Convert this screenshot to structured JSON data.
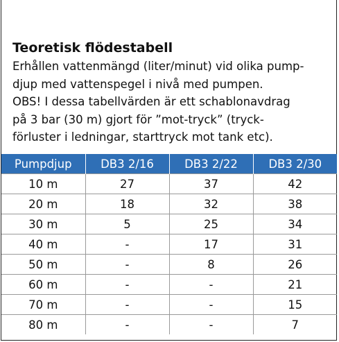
{
  "title": "Teoretisk flödestabell",
  "lines": [
    "Erhållen vattenmängd (liter/minut) vid olika pump-",
    "djup med vattenspegel i nivå med pumpen.",
    "OBS! I dessa tabellvärden är ett schablonavdrag",
    "på 3 bar (30 m) gjort för ”mot-tryck”  (tryck-",
    "förluster i ledningar, starttryck mot tank etc)."
  ],
  "table": {
    "header": [
      "Pumpdjup",
      "DB3 2/16",
      "DB3 2/22",
      "DB3 2/30"
    ],
    "rows": [
      [
        "10 m",
        27,
        37,
        42
      ],
      [
        "20 m",
        18,
        32,
        38
      ],
      [
        "30 m",
        5,
        25,
        34
      ],
      [
        "40 m",
        "-",
        17,
        31
      ],
      [
        "50 m",
        "-",
        8,
        26
      ],
      [
        "60 m",
        "-",
        "-",
        21
      ],
      [
        "70 m",
        "-",
        "-",
        15
      ],
      [
        "80 m",
        "-",
        "-",
        7
      ]
    ]
  }
}
